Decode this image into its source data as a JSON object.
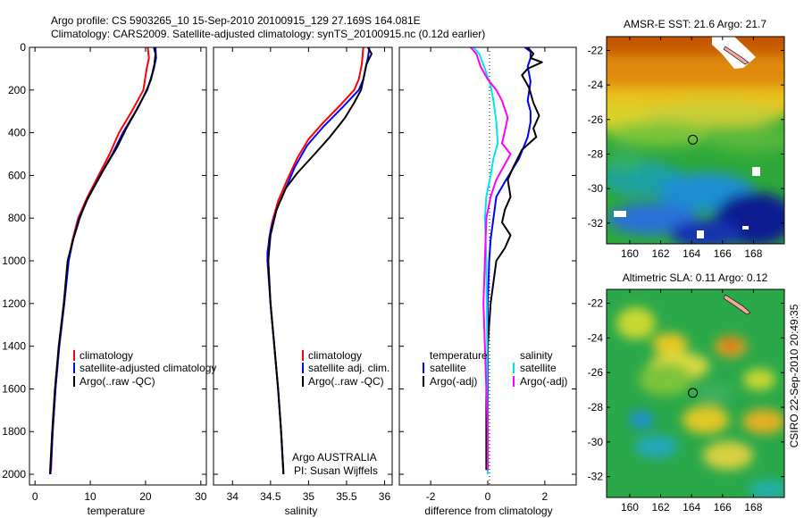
{
  "header": {
    "line1": "Argo profile: CS 5903265_10 15-Sep-2010 20100915_129 27.169S 164.081E",
    "line2": "Climatology: CARS2009. Satellite-adjusted climatology: synTS_20100915.nc (0.12d earlier)"
  },
  "side_label": "CSIRO 22-Sep-2010 20:49:35",
  "colors": {
    "climatology": "#ff0000",
    "satellite": "#0000ff",
    "argo": "#000000",
    "sal_satellite": "#00e5ee",
    "sal_argo": "#ff00ff"
  },
  "chart_data": [
    {
      "id": "temp",
      "type": "line",
      "xlabel": "temperature",
      "xlim": [
        -1,
        31
      ],
      "ylim": [
        2050,
        0
      ],
      "xticks": [
        0,
        10,
        20,
        30
      ],
      "yticks": [
        0,
        200,
        400,
        600,
        800,
        1000,
        1200,
        1400,
        1600,
        1800,
        2000
      ],
      "legend": [
        "climatology",
        "satellite-adjusted climatology",
        "Argo(..raw -QC)"
      ],
      "series": [
        {
          "name": "climatology",
          "color": "#ff0000",
          "points": [
            [
              20.4,
              0
            ],
            [
              20.6,
              50
            ],
            [
              20.2,
              100
            ],
            [
              19.6,
              200
            ],
            [
              17.5,
              300
            ],
            [
              15.2,
              400
            ],
            [
              13.5,
              500
            ],
            [
              11.5,
              600
            ],
            [
              9.5,
              700
            ],
            [
              7.8,
              800
            ],
            [
              6.8,
              900
            ],
            [
              6.0,
              1000
            ],
            [
              5.2,
              1200
            ],
            [
              4.3,
              1400
            ],
            [
              3.7,
              1600
            ],
            [
              3.2,
              1800
            ],
            [
              2.9,
              1980
            ]
          ]
        },
        {
          "name": "satellite-adjusted climatology",
          "color": "#0000ff",
          "points": [
            [
              21.8,
              0
            ],
            [
              21.9,
              50
            ],
            [
              21.5,
              100
            ],
            [
              20.3,
              200
            ],
            [
              18.2,
              300
            ],
            [
              15.9,
              400
            ],
            [
              14.0,
              500
            ],
            [
              11.8,
              600
            ],
            [
              9.7,
              700
            ],
            [
              8.0,
              800
            ],
            [
              6.9,
              900
            ],
            [
              6.1,
              1000
            ],
            [
              5.3,
              1200
            ],
            [
              4.4,
              1400
            ],
            [
              3.7,
              1600
            ],
            [
              3.2,
              1800
            ],
            [
              2.8,
              2000
            ]
          ]
        },
        {
          "name": "Argo(..raw -QC)",
          "color": "#000000",
          "points": [
            [
              21.5,
              0
            ],
            [
              21.8,
              30
            ],
            [
              21.6,
              80
            ],
            [
              21.0,
              150
            ],
            [
              20.2,
              200
            ],
            [
              18.9,
              270
            ],
            [
              16.5,
              380
            ],
            [
              14.8,
              470
            ],
            [
              12.5,
              570
            ],
            [
              11.2,
              630
            ],
            [
              9.3,
              720
            ],
            [
              8.1,
              800
            ],
            [
              6.9,
              900
            ],
            [
              5.9,
              1000
            ],
            [
              5.2,
              1200
            ],
            [
              4.3,
              1400
            ],
            [
              3.6,
              1600
            ],
            [
              3.1,
              1800
            ],
            [
              2.7,
              2000
            ]
          ]
        }
      ]
    },
    {
      "id": "sal",
      "type": "line",
      "xlabel": "salinity",
      "xlim": [
        33.75,
        36.1
      ],
      "ylim": [
        2050,
        0
      ],
      "xticks": [
        34,
        34.5,
        35,
        35.5,
        36
      ],
      "legend": [
        "climatology",
        "satellite adj. clim.",
        "Argo(..raw -QC)"
      ],
      "annotations": [
        "Argo AUSTRALIA",
        "PI: Susan Wijffels"
      ],
      "series": [
        {
          "name": "climatology",
          "color": "#ff0000",
          "points": [
            [
              35.72,
              0
            ],
            [
              35.7,
              80
            ],
            [
              35.66,
              150
            ],
            [
              35.6,
              200
            ],
            [
              35.42,
              270
            ],
            [
              35.2,
              350
            ],
            [
              35.0,
              430
            ],
            [
              34.85,
              520
            ],
            [
              34.72,
              620
            ],
            [
              34.6,
              720
            ],
            [
              34.52,
              820
            ],
            [
              34.48,
              900
            ],
            [
              34.47,
              1000
            ],
            [
              34.5,
              1200
            ],
            [
              34.55,
              1400
            ],
            [
              34.6,
              1600
            ],
            [
              34.64,
              1800
            ],
            [
              34.67,
              1990
            ]
          ]
        },
        {
          "name": "satellite adj. clim.",
          "color": "#0000ff",
          "points": [
            [
              35.8,
              0
            ],
            [
              35.78,
              50
            ],
            [
              35.75,
              100
            ],
            [
              35.72,
              150
            ],
            [
              35.66,
              200
            ],
            [
              35.45,
              280
            ],
            [
              35.2,
              370
            ],
            [
              34.98,
              460
            ],
            [
              34.82,
              560
            ],
            [
              34.7,
              660
            ],
            [
              34.58,
              760
            ],
            [
              34.5,
              860
            ],
            [
              34.46,
              960
            ],
            [
              34.46,
              1000
            ],
            [
              34.5,
              1200
            ],
            [
              34.55,
              1400
            ],
            [
              34.6,
              1600
            ],
            [
              34.64,
              1800
            ],
            [
              34.67,
              2000
            ]
          ]
        },
        {
          "name": "Argo(..raw -QC)",
          "color": "#000000",
          "points": [
            [
              35.78,
              0
            ],
            [
              35.83,
              30
            ],
            [
              35.76,
              80
            ],
            [
              35.72,
              150
            ],
            [
              35.69,
              200
            ],
            [
              35.6,
              260
            ],
            [
              35.48,
              330
            ],
            [
              35.28,
              420
            ],
            [
              35.08,
              500
            ],
            [
              34.85,
              590
            ],
            [
              34.7,
              660
            ],
            [
              34.58,
              760
            ],
            [
              34.5,
              880
            ],
            [
              34.47,
              1000
            ],
            [
              34.5,
              1200
            ],
            [
              34.55,
              1400
            ],
            [
              34.6,
              1600
            ],
            [
              34.64,
              1800
            ],
            [
              34.67,
              2000
            ]
          ]
        }
      ]
    },
    {
      "id": "diff",
      "type": "line",
      "xlabel": "difference from climatology",
      "xlim": [
        -3.1,
        3.1
      ],
      "ylim": [
        2050,
        0
      ],
      "xticks": [
        -2,
        0,
        2
      ],
      "legend_left": {
        "title": "temperature",
        "items": [
          "satellite",
          "Argo(-adj)"
        ]
      },
      "legend_right": {
        "title": "salinity",
        "items": [
          "satellite",
          "Argo(-adj)"
        ]
      },
      "series": [
        {
          "name": "temperature satellite",
          "color": "#0000ff",
          "points": [
            [
              1.3,
              0
            ],
            [
              1.5,
              20
            ],
            [
              1.5,
              50
            ],
            [
              1.4,
              90
            ],
            [
              1.5,
              160
            ],
            [
              1.4,
              250
            ],
            [
              1.5,
              300
            ],
            [
              1.5,
              350
            ],
            [
              1.4,
              420
            ],
            [
              1.1,
              520
            ],
            [
              0.6,
              630
            ],
            [
              0.3,
              700
            ],
            [
              0.2,
              800
            ],
            [
              0.1,
              900
            ],
            [
              0.05,
              1000
            ],
            [
              0,
              1200
            ],
            [
              0,
              1400
            ],
            [
              0,
              1600
            ],
            [
              0,
              1800
            ],
            [
              0,
              2000
            ]
          ]
        },
        {
          "name": "temperature Argo(-adj)",
          "color": "#000000",
          "points": [
            [
              1.4,
              0
            ],
            [
              1.6,
              30
            ],
            [
              1.5,
              50
            ],
            [
              1.9,
              70
            ],
            [
              1.4,
              100
            ],
            [
              1.2,
              130
            ],
            [
              1.45,
              190
            ],
            [
              1.6,
              260
            ],
            [
              1.8,
              320
            ],
            [
              1.6,
              380
            ],
            [
              1.7,
              420
            ],
            [
              1.2,
              480
            ],
            [
              0.9,
              560
            ],
            [
              0.7,
              620
            ],
            [
              0.8,
              700
            ],
            [
              0.6,
              760
            ],
            [
              0.5,
              820
            ],
            [
              0.8,
              880
            ],
            [
              0.6,
              940
            ],
            [
              0.3,
              1000
            ],
            [
              0.2,
              1100
            ],
            [
              0.1,
              1200
            ],
            [
              0.05,
              1300
            ],
            [
              0,
              1400
            ],
            [
              -0.05,
              1600
            ],
            [
              -0.05,
              1800
            ],
            [
              -0.05,
              1980
            ]
          ]
        },
        {
          "name": "salinity satellite",
          "color": "#00e5ee",
          "points": [
            [
              -0.5,
              0
            ],
            [
              -0.3,
              30
            ],
            [
              -0.1,
              100
            ],
            [
              0.1,
              180
            ],
            [
              0.2,
              250
            ],
            [
              0.3,
              350
            ],
            [
              0.35,
              450
            ],
            [
              0.2,
              520
            ],
            [
              0.1,
              600
            ],
            [
              -0.05,
              700
            ],
            [
              -0.1,
              800
            ],
            [
              -0.05,
              1000
            ],
            [
              -0.02,
              1400
            ],
            [
              -0.02,
              1600
            ],
            [
              0,
              1800
            ],
            [
              0,
              2000
            ]
          ]
        },
        {
          "name": "salinity Argo(-adj)",
          "color": "#ff00ff",
          "points": [
            [
              -0.6,
              0
            ],
            [
              -0.4,
              30
            ],
            [
              -0.25,
              90
            ],
            [
              0,
              150
            ],
            [
              0.3,
              200
            ],
            [
              0.5,
              250
            ],
            [
              0.7,
              330
            ],
            [
              0.6,
              390
            ],
            [
              0.5,
              450
            ],
            [
              0.8,
              500
            ],
            [
              0.55,
              560
            ],
            [
              0.3,
              620
            ],
            [
              0.1,
              700
            ],
            [
              -0.05,
              800
            ],
            [
              -0.1,
              1000
            ],
            [
              -0.15,
              1200
            ],
            [
              -0.1,
              1400
            ],
            [
              -0.05,
              1600
            ],
            [
              0,
              1800
            ],
            [
              0,
              1980
            ]
          ]
        }
      ]
    },
    {
      "id": "sst",
      "type": "heatmap",
      "title": "AMSR-E SST: 21.6 Argo: 21.7",
      "xlim": [
        158.5,
        170
      ],
      "ylim": [
        -33.2,
        -21.2
      ],
      "xticks": [
        160,
        162,
        164,
        166,
        168
      ],
      "yticks": [
        -22,
        -24,
        -26,
        -28,
        -30,
        -32
      ],
      "marker": [
        164.081,
        -27.169
      ]
    },
    {
      "id": "sla",
      "type": "heatmap",
      "title": "Altimetric SLA: 0.11 Argo: 0.12",
      "xlim": [
        158.5,
        170
      ],
      "ylim": [
        -33.2,
        -21.2
      ],
      "xticks": [
        160,
        162,
        164,
        166,
        168
      ],
      "yticks": [
        -22,
        -24,
        -26,
        -28,
        -30,
        -32
      ],
      "marker": [
        164.081,
        -27.169
      ]
    }
  ]
}
